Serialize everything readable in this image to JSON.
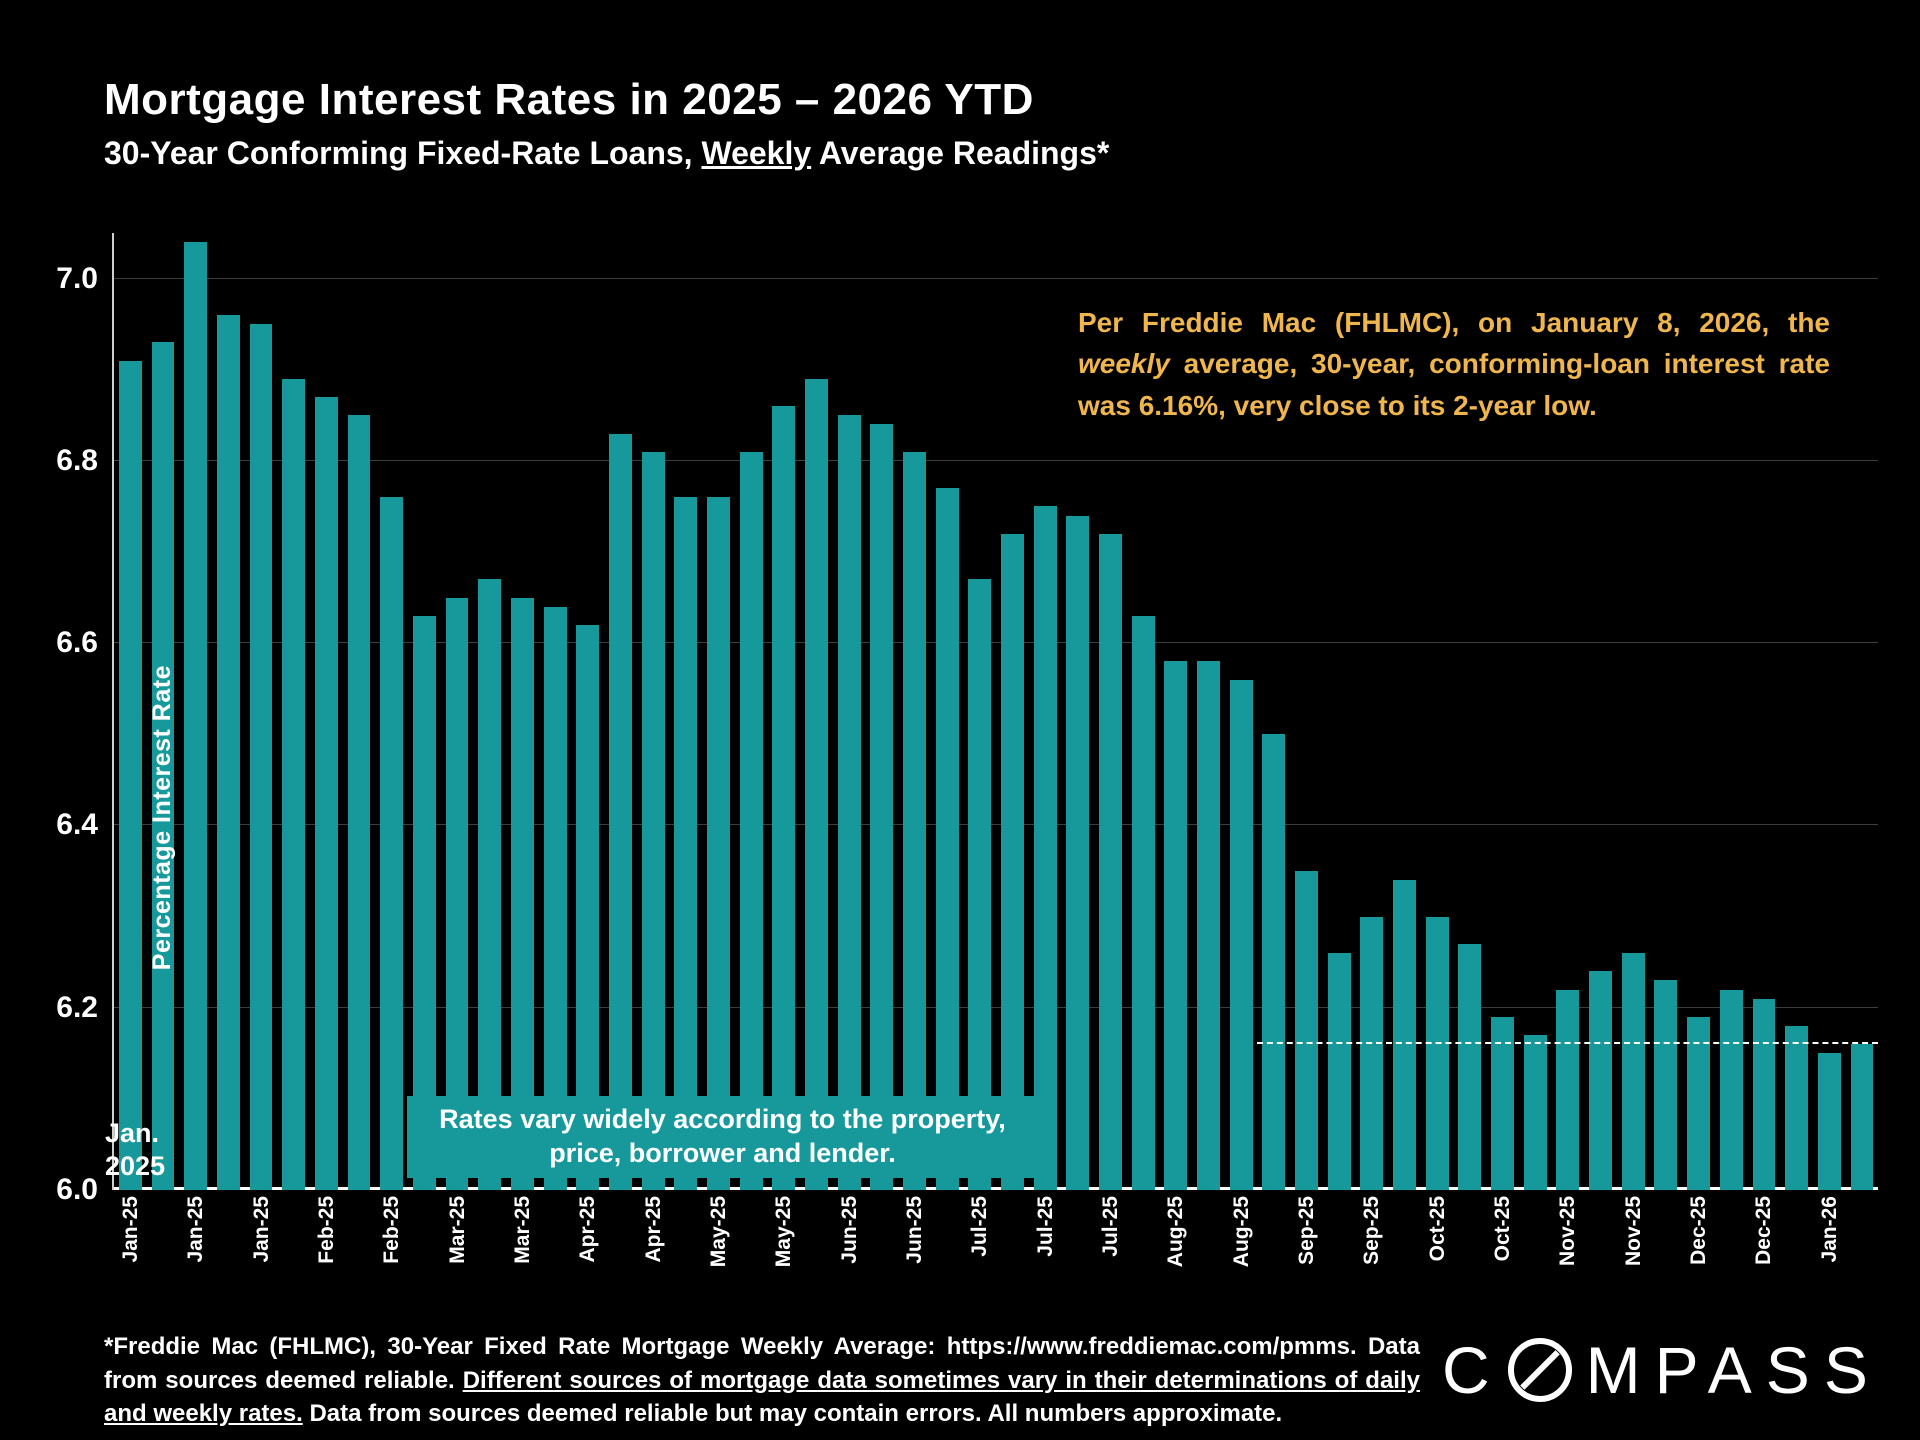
{
  "title": "Mortgage Interest Rates in 2025 – 2026 YTD",
  "subtitle": {
    "pre": "30-Year Conforming Fixed-Rate Loans, ",
    "underlined": "Weekly",
    "post": " Average Readings*"
  },
  "annotation": {
    "pre": "Per Freddie Mac (FHLMC), on January 8, 2026, the ",
    "italic": "weekly",
    "post": " average, 30-year, conforming-loan interest rate was 6.16%, very close to its 2-year low.",
    "color": "#F0B64E"
  },
  "ylabel": "Percentage Interest  Rate",
  "start_label": {
    "line1": "Jan.",
    "line2": "2025"
  },
  "callout": {
    "line1": "Rates vary widely according to the property,",
    "line2": "price, borrower and lender."
  },
  "footer": {
    "seg1": "*Freddie Mac (FHLMC), 30-Year Fixed Rate Mortgage Weekly Average:  https://www.freddiemac.com/pmms. Data from sources deemed reliable. ",
    "seg2": "Different sources of mortgage data sometimes vary in their determinations of daily and weekly rates.",
    "seg3": " Data from sources deemed reliable but may contain errors. All numbers approximate."
  },
  "logo": {
    "pre": "C",
    "post": "MPASS"
  },
  "chart_data": {
    "type": "bar",
    "title": "Mortgage Interest Rates in 2025 – 2026 YTD",
    "subtitle": "30-Year Conforming Fixed-Rate Loans, Weekly Average Readings*",
    "ylabel": "Percentage Interest Rate",
    "xlabel": "",
    "ylim": [
      6.0,
      7.05
    ],
    "yticks": [
      6.0,
      6.2,
      6.4,
      6.6,
      6.8,
      7.0
    ],
    "grid": true,
    "background": "#000000",
    "bar_color": "#17999C",
    "dashed_line": {
      "value": 6.16,
      "color": "#FFFFFF",
      "start_bar_index": 35
    },
    "x_labels": [
      "Jan-25",
      "",
      "Jan-25",
      "",
      "Jan-25",
      "",
      "Feb-25",
      "",
      "Feb-25",
      "",
      "Mar-25",
      "",
      "Mar-25",
      "",
      "Apr-25",
      "",
      "Apr-25",
      "",
      "May-25",
      "",
      "May-25",
      "",
      "Jun-25",
      "",
      "Jun-25",
      "",
      "Jul-25",
      "",
      "Jul-25",
      "",
      "Jul-25",
      "",
      "Aug-25",
      "",
      "Aug-25",
      "",
      "Sep-25",
      "",
      "Sep-25",
      "",
      "Oct-25",
      "",
      "Oct-25",
      "",
      "Nov-25",
      "",
      "Nov-25",
      "",
      "Dec-25",
      "",
      "Dec-25",
      "",
      "Jan-26",
      ""
    ],
    "values": [
      6.91,
      6.93,
      7.04,
      6.96,
      6.95,
      6.89,
      6.87,
      6.85,
      6.76,
      6.63,
      6.65,
      6.67,
      6.65,
      6.64,
      6.62,
      6.83,
      6.81,
      6.76,
      6.76,
      6.81,
      6.86,
      6.89,
      6.85,
      6.84,
      6.81,
      6.77,
      6.67,
      6.72,
      6.75,
      6.74,
      6.72,
      6.63,
      6.58,
      6.58,
      6.56,
      6.5,
      6.35,
      6.26,
      6.3,
      6.34,
      6.3,
      6.27,
      6.19,
      6.17,
      6.22,
      6.24,
      6.26,
      6.23,
      6.19,
      6.22,
      6.21,
      6.18,
      6.15,
      6.16
    ]
  }
}
